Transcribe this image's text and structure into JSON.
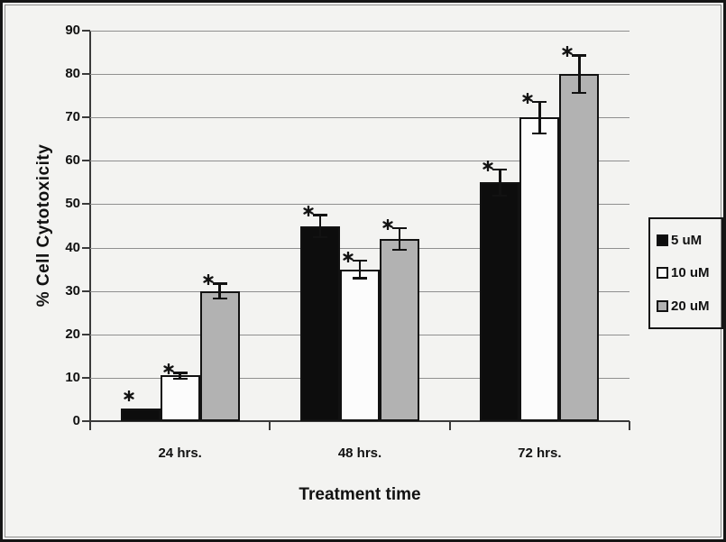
{
  "chart_data": {
    "type": "bar",
    "title": "",
    "xlabel": "Treatment time",
    "ylabel": "% Cell Cytotoxicity",
    "ylim": [
      0,
      90
    ],
    "yticks": [
      0,
      10,
      20,
      30,
      40,
      50,
      60,
      70,
      80,
      90
    ],
    "grid": true,
    "legend_position": "right-outside",
    "significance_symbol": "*",
    "categories": [
      "24 hrs.",
      "48 hrs.",
      "72 hrs."
    ],
    "series": [
      {
        "name": "5 uM",
        "fill": "#0d0d0d",
        "values": [
          3,
          45,
          55
        ],
        "errors": [
          0,
          2.5,
          3
        ],
        "significant": [
          true,
          true,
          true
        ]
      },
      {
        "name": "10 uM",
        "fill": "#fcfcfc",
        "values": [
          10.5,
          35,
          70
        ],
        "errors": [
          0.7,
          2,
          3.6
        ],
        "significant": [
          true,
          true,
          true
        ]
      },
      {
        "name": "20 uM",
        "fill": "#b2b2b2",
        "values": [
          30,
          42,
          80
        ],
        "errors": [
          1.7,
          2.5,
          4.3
        ],
        "significant": [
          true,
          true,
          true
        ]
      }
    ],
    "colors": {
      "background": "#f3f3f1",
      "gridline": "#8f8f8f",
      "axis": "#3a3a3a",
      "error_bar": "#121212"
    }
  }
}
